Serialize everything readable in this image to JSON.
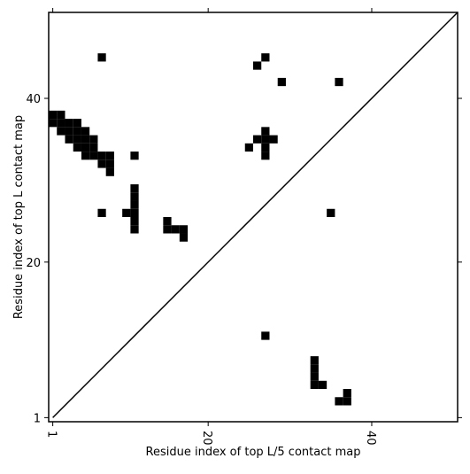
{
  "chart_data": {
    "type": "scatter",
    "marker": "square",
    "xlabel": "Residue index of top L/5 contact map",
    "ylabel": "Residue index of top L contact map",
    "xlim": [
      0.5,
      50.5
    ],
    "ylim": [
      0.5,
      50.5
    ],
    "xticks": [
      1,
      20,
      40
    ],
    "yticks": [
      1,
      20,
      40
    ],
    "diagonal": true,
    "series": [
      {
        "color": "#000000",
        "x": [
          7,
          27,
          26,
          29,
          36,
          1,
          2,
          1,
          2,
          3,
          4,
          2,
          3,
          4,
          5,
          3,
          4,
          5,
          6,
          4,
          5,
          6,
          5,
          6,
          7,
          8,
          7,
          8,
          8,
          11,
          11,
          11,
          11,
          11,
          11,
          11,
          10,
          7,
          15,
          15,
          16,
          17,
          17,
          25,
          27,
          26,
          27,
          28,
          27,
          27,
          35
        ],
        "y": [
          45,
          45,
          44,
          42,
          42,
          38,
          38,
          37,
          37,
          37,
          37,
          36,
          36,
          36,
          36,
          35,
          35,
          35,
          35,
          34,
          34,
          34,
          33,
          33,
          33,
          33,
          32,
          32,
          31,
          33,
          29,
          28,
          27,
          26,
          25,
          24,
          26,
          26,
          25,
          24,
          24,
          24,
          23,
          34,
          36,
          35,
          35,
          35,
          34,
          33,
          26
        ]
      },
      {
        "color": "#000000",
        "x": [
          27,
          33,
          33,
          33,
          33,
          34,
          37,
          36,
          37
        ],
        "y": [
          11,
          8,
          7,
          6,
          5,
          5,
          4,
          3,
          3
        ]
      }
    ]
  }
}
